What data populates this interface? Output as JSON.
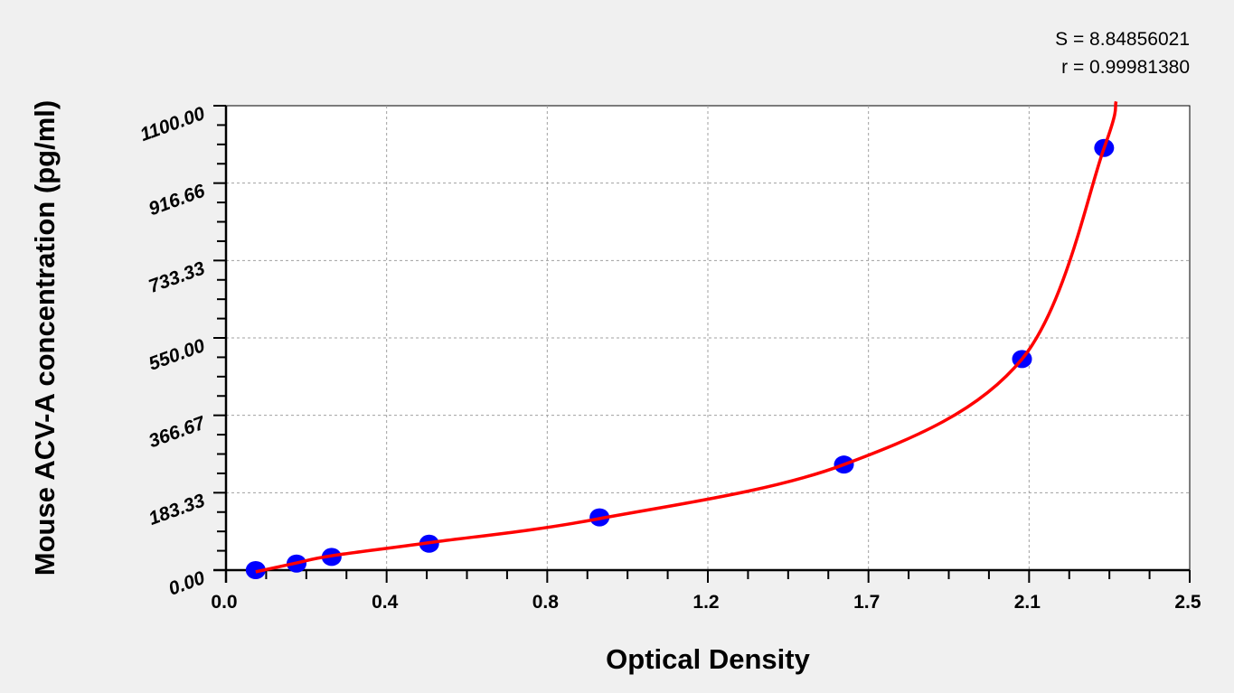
{
  "chart_data": {
    "type": "scatter",
    "xlabel": "Optical Density",
    "ylabel": "Mouse ACV-A concentration (pg/ml)",
    "xlim": [
      0,
      2.5
    ],
    "ylim": [
      0,
      1100
    ],
    "x_tick_labels": [
      "0.0",
      "0.4",
      "0.8",
      "1.2",
      "1.7",
      "2.1",
      "2.5"
    ],
    "y_tick_labels": [
      "0.00",
      "183.33",
      "366.67",
      "550.00",
      "733.33",
      "916.66",
      "1100.00"
    ],
    "grid": true,
    "annotations": [
      "S = 8.84856021",
      "r = 0.99981380"
    ],
    "series": [
      {
        "type": "scatter",
        "color": "#0000ff",
        "x": [
          0.077,
          0.183,
          0.274,
          0.527,
          0.969,
          1.603,
          2.065,
          2.278
        ],
        "y": [
          0,
          15.6,
          31.25,
          62.5,
          125,
          250,
          500,
          1000
        ]
      },
      {
        "type": "line",
        "color": "#ff0000",
        "x": [
          0.077,
          0.183,
          0.274,
          0.527,
          0.969,
          1.603,
          2.065,
          2.278,
          2.309
        ],
        "y": [
          -4,
          17,
          34,
          65,
          122,
          250,
          500,
          1000,
          1110
        ]
      }
    ]
  }
}
